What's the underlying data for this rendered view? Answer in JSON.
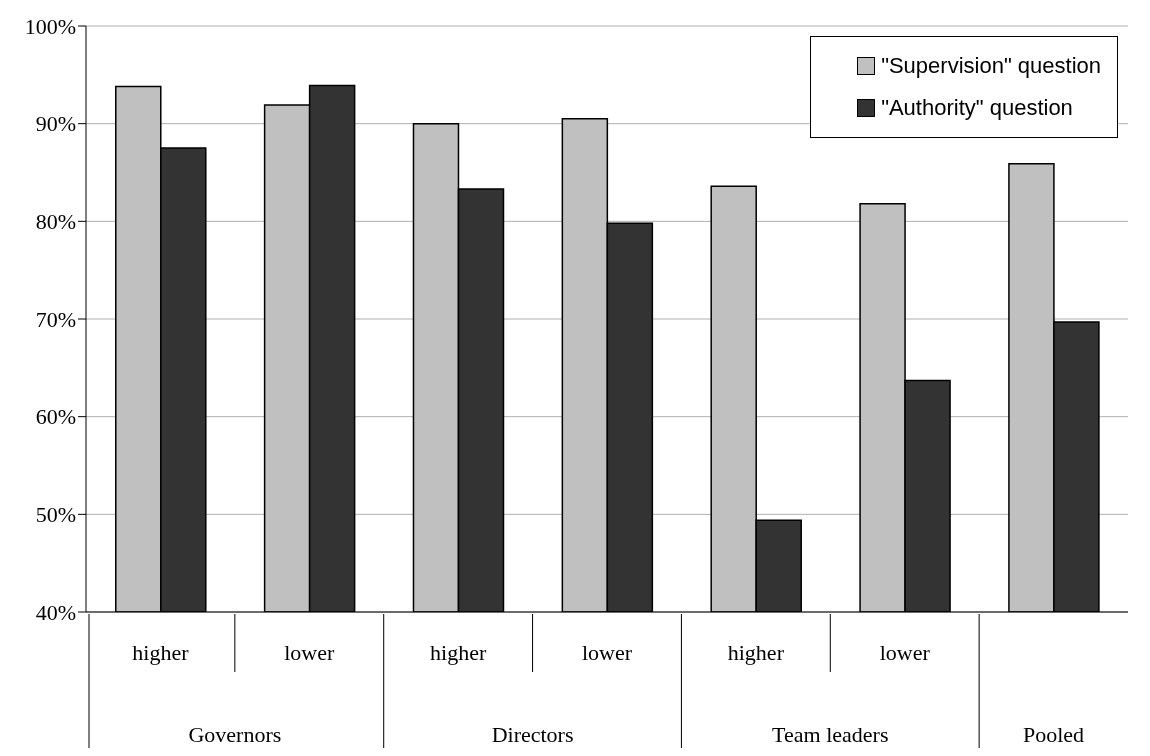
{
  "chart_data": {
    "type": "bar",
    "categories": [
      "higher",
      "lower",
      "higher",
      "lower",
      "higher",
      "lower",
      null
    ],
    "series": [
      {
        "name": "\"Supervision\" question",
        "color": "#c0c0c0",
        "values": [
          93.8,
          91.9,
          90.0,
          90.5,
          83.6,
          81.8,
          85.9
        ]
      },
      {
        "name": "\"Authority\" question",
        "color": "#333333",
        "values": [
          87.5,
          93.9,
          83.3,
          79.8,
          49.4,
          63.7,
          69.7
        ]
      }
    ],
    "ylim": [
      40,
      100
    ],
    "yticks": [
      {
        "value": 40,
        "label": "40%"
      },
      {
        "value": 50,
        "label": "50%"
      },
      {
        "value": 60,
        "label": "60%"
      },
      {
        "value": 70,
        "label": "70%"
      },
      {
        "value": 80,
        "label": "80%"
      },
      {
        "value": 90,
        "label": "90%"
      },
      {
        "value": 100,
        "label": "100%"
      }
    ],
    "grid": "y",
    "legend": "top right",
    "annotations": [
      "Governors",
      "Directors",
      "Team leaders",
      "Pooled"
    ]
  }
}
